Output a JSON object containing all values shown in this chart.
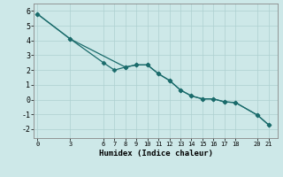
{
  "line1_x": [
    0,
    3,
    6,
    7,
    8,
    9,
    10,
    11,
    12,
    13,
    14,
    15,
    16,
    17,
    18,
    20,
    21
  ],
  "line1_y": [
    5.8,
    4.1,
    2.5,
    2.0,
    2.2,
    2.35,
    2.35,
    1.75,
    1.3,
    0.65,
    0.25,
    0.05,
    0.05,
    -0.15,
    -0.2,
    -1.05,
    -1.7
  ],
  "line2_x": [
    0,
    3,
    8,
    9,
    10,
    11,
    12,
    13,
    14,
    15,
    16,
    17,
    18,
    20,
    21
  ],
  "line2_y": [
    5.8,
    4.1,
    2.2,
    2.35,
    2.35,
    1.75,
    1.3,
    0.65,
    0.25,
    0.05,
    0.05,
    -0.15,
    -0.2,
    -1.05,
    -1.7
  ],
  "line_color": "#1a6b6b",
  "marker": "D",
  "marker_size": 2.5,
  "xlabel": "Humidex (Indice chaleur)",
  "xtick_vals": [
    0,
    3,
    6,
    7,
    8,
    9,
    10,
    11,
    12,
    13,
    14,
    15,
    16,
    17,
    18,
    20,
    21
  ],
  "xtick_labels": [
    "0",
    "3",
    "6",
    "7",
    "8",
    "9",
    "10",
    "11",
    "12",
    "13",
    "14",
    "15",
    "16",
    "17",
    "18",
    "20",
    "21"
  ],
  "ytick_vals": [
    -2,
    -1,
    0,
    1,
    2,
    3,
    4,
    5,
    6
  ],
  "ytick_labels": [
    "-2",
    "-1",
    "0",
    "1",
    "2",
    "3",
    "4",
    "5",
    "6"
  ],
  "xlim": [
    -0.3,
    21.8
  ],
  "ylim": [
    -2.6,
    6.5
  ],
  "bg_color": "#cde8e8",
  "grid_color": "#aed0d0",
  "linewidth": 0.9
}
